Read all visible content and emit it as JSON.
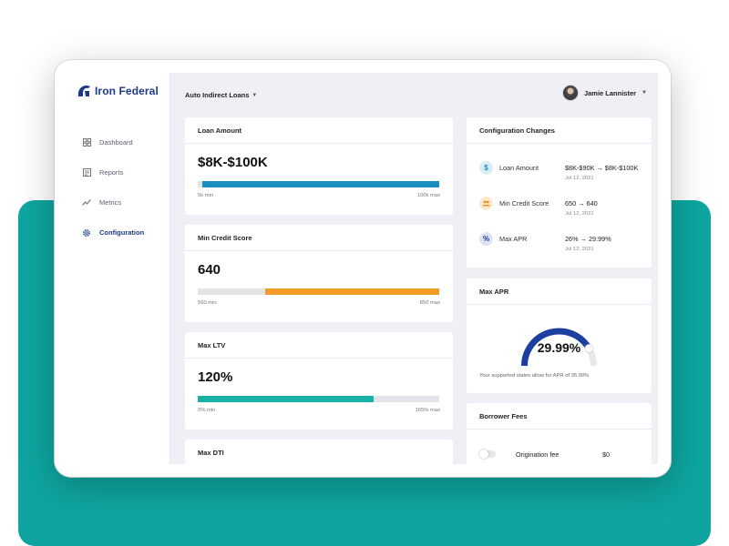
{
  "brand": {
    "name": "Iron Federal",
    "color": "#1d3a8a"
  },
  "sidebar": {
    "items": [
      {
        "label": "Dashboard",
        "icon": "dashboard-icon",
        "active": false
      },
      {
        "label": "Reports",
        "icon": "reports-icon",
        "active": false
      },
      {
        "label": "Metrics",
        "icon": "metrics-icon",
        "active": false
      },
      {
        "label": "Configuration",
        "icon": "gear-icon",
        "active": true
      }
    ]
  },
  "header": {
    "product_select": "Auto Indirect Loans",
    "user_name": "Jamie Lannister"
  },
  "metrics": [
    {
      "title": "Loan Amount",
      "value": "$8K-$100K",
      "min_label": "5k min",
      "max_label": "100k max",
      "fill_start": 0.02,
      "fill_end": 1.0,
      "color": "#1a8fc2"
    },
    {
      "title": "Min Credit Score",
      "value": "640",
      "min_label": "560 min",
      "max_label": "850 max",
      "fill_start": 0.28,
      "fill_end": 1.0,
      "color": "#f29b26"
    },
    {
      "title": "Max LTV",
      "value": "120%",
      "min_label": "0% min",
      "max_label": "165% max",
      "fill_start": 0.0,
      "fill_end": 0.73,
      "color": "#1ab0a6"
    },
    {
      "title": "Max DTI"
    }
  ],
  "changes": {
    "title": "Configuration Changes",
    "items": [
      {
        "label": "Loan Amount",
        "value": "$8K-$90K → $8K-$100K",
        "date": "Jul 12, 2021",
        "icon": "dollar-icon",
        "icon_bg": "#dcecf7",
        "icon_color": "#1a8fc2",
        "glyph": "$"
      },
      {
        "label": "Min Credit Score",
        "value": "650 → 640",
        "date": "Jul 12, 2021",
        "icon": "people-icon",
        "icon_bg": "#fde9cf",
        "icon_color": "#e58a12",
        "glyph": "👥"
      },
      {
        "label": "Max APR",
        "value": "26% → 29.99%",
        "date": "Jul 12, 2021",
        "icon": "percent-icon",
        "icon_bg": "#dde4f2",
        "icon_color": "#1d3a8a",
        "glyph": "%"
      }
    ]
  },
  "apr": {
    "title": "Max APR",
    "value": "29.99%",
    "note": "Your supported states allow for APR of 35.99%",
    "fraction": 0.8333,
    "color": "#1d3fa0"
  },
  "fees": {
    "title": "Borrower Fees",
    "items": [
      {
        "name": "Origination fee",
        "amount": "$0"
      }
    ]
  }
}
